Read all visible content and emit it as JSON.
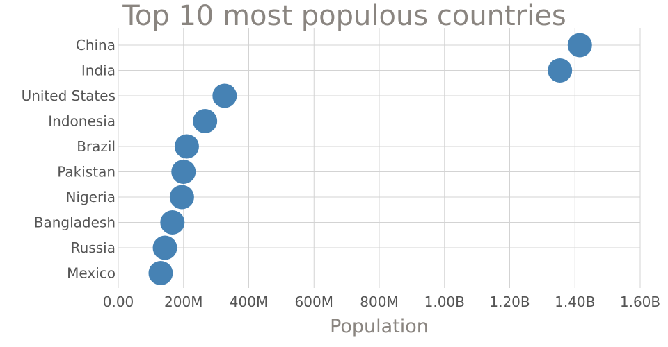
{
  "chart_data": {
    "type": "scatter",
    "title": "Top 10 most populous countries",
    "xlabel": "Population",
    "ylabel": "",
    "xlim": [
      0,
      1600000000
    ],
    "x_ticks": [
      {
        "value": 0,
        "label": "0.00"
      },
      {
        "value": 200000000,
        "label": "200M"
      },
      {
        "value": 400000000,
        "label": "400M"
      },
      {
        "value": 600000000,
        "label": "600M"
      },
      {
        "value": 800000000,
        "label": "800M"
      },
      {
        "value": 1000000000,
        "label": "1.00B"
      },
      {
        "value": 1200000000,
        "label": "1.20B"
      },
      {
        "value": 1400000000,
        "label": "1.40B"
      },
      {
        "value": 1600000000,
        "label": "1.60B"
      }
    ],
    "categories": [
      "China",
      "India",
      "United States",
      "Indonesia",
      "Brazil",
      "Pakistan",
      "Nigeria",
      "Bangladesh",
      "Russia",
      "Mexico"
    ],
    "values": [
      1415000000,
      1354000000,
      326000000,
      266000000,
      210000000,
      200000000,
      195000000,
      166000000,
      143000000,
      130000000
    ],
    "grid": true,
    "legend": "none",
    "colors": {
      "marker": "#4682b4",
      "grid": "#d3d3d3",
      "title": "#8a8580",
      "tick": "#555555"
    }
  }
}
